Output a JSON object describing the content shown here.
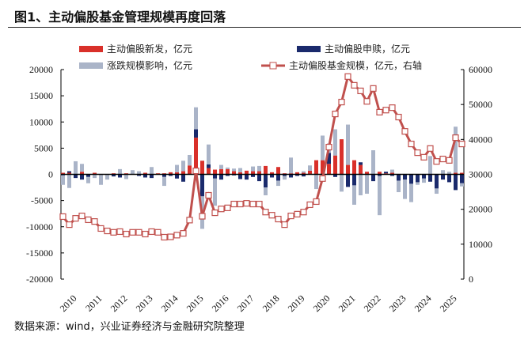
{
  "title": "图1、主动偏股基金管理规模再度回落",
  "source": "数据来源：wind，兴业证券经济与金融研究院整理",
  "chart_data": {
    "type": "bar+line",
    "title": "图1、主动偏股基金管理规模再度回落",
    "x_tick_labels": [
      "2010",
      "2011",
      "2012",
      "2013",
      "2014",
      "2015",
      "2016",
      "2017",
      "2018",
      "2019",
      "2020",
      "2021",
      "2022",
      "2023",
      "2024",
      "2025"
    ],
    "left_axis": {
      "ylim": [
        -20000,
        20000
      ],
      "ticks": [
        20000,
        15000,
        10000,
        5000,
        0,
        -5000,
        -10000,
        -15000,
        -20000
      ]
    },
    "right_axis": {
      "ylim": [
        0,
        60000
      ],
      "ticks": [
        60000,
        50000,
        40000,
        30000,
        20000,
        10000,
        0
      ]
    },
    "colors": {
      "new": "#d9302a",
      "sub": "#1a2a6c",
      "mkt": "#aab4c8",
      "line": "#c0504d"
    },
    "series": [
      {
        "name": "主动偏股新发，亿元",
        "type": "bar",
        "axis": "left",
        "values": [
          300,
          300,
          0,
          500,
          0,
          300,
          0,
          0,
          200,
          0,
          200,
          0,
          0,
          300,
          0,
          200,
          200,
          400,
          400,
          600,
          1700,
          7000,
          2600,
          1200,
          900,
          1000,
          1000,
          600,
          400,
          700,
          600,
          600,
          1600,
          400,
          1400,
          200,
          200,
          400,
          300,
          700,
          2700,
          2700,
          2000,
          3600,
          6700,
          1800,
          2700,
          1800,
          500,
          0,
          500,
          200,
          300,
          0,
          0,
          0,
          0,
          0,
          0,
          0,
          0,
          0,
          300,
          300
        ]
      },
      {
        "name": "主动偏股申赎，亿元",
        "type": "bar",
        "axis": "left",
        "values": [
          -200,
          300,
          -700,
          -1000,
          -500,
          0,
          0,
          0,
          -400,
          -600,
          0,
          0,
          -300,
          -600,
          -700,
          0,
          -500,
          -300,
          -800,
          -1400,
          0,
          1600,
          -4200,
          700,
          -800,
          -1000,
          -300,
          -200,
          -900,
          -1000,
          -500,
          -1300,
          -2500,
          -600,
          -1200,
          -300,
          -600,
          -300,
          -400,
          0,
          0,
          0,
          2100,
          -500,
          0,
          -2400,
          -2100,
          500,
          0,
          -1300,
          -300,
          300,
          -300,
          -1200,
          -1000,
          -1800,
          -1500,
          -800,
          -1400,
          -2700,
          -1000,
          -1500,
          -3000,
          -1700
        ]
      },
      {
        "name": "涨跌规模影响，亿元",
        "type": "bar",
        "axis": "left",
        "values": [
          -1800,
          -2600,
          2500,
          1500,
          -1200,
          -700,
          -2000,
          -1000,
          0,
          1000,
          -900,
          800,
          600,
          0,
          1400,
          0,
          -1700,
          0,
          1400,
          2000,
          2000,
          4200,
          -6200,
          3800,
          -5200,
          800,
          300,
          500,
          800,
          0,
          900,
          1000,
          -1500,
          0,
          -1000,
          -700,
          3000,
          0,
          300,
          1000,
          -2800,
          4700,
          1800,
          5000,
          -3300,
          7700,
          -3700,
          -4000,
          -3700,
          4600,
          -7500,
          0,
          600,
          -2200,
          -3700,
          -3500,
          -500,
          -800,
          3500,
          -1000,
          800,
          500,
          8800,
          -600
        ]
      },
      {
        "name": "主动偏股基金规模，亿元，右轴",
        "type": "line",
        "axis": "right",
        "values": [
          17900,
          15600,
          17400,
          18100,
          17000,
          16500,
          14500,
          13800,
          13400,
          13600,
          12900,
          13400,
          13400,
          12900,
          13600,
          13400,
          12000,
          12100,
          12600,
          13100,
          16900,
          31000,
          18000,
          24000,
          19000,
          20100,
          20400,
          21500,
          21500,
          21700,
          21500,
          21500,
          19200,
          18300,
          17200,
          15600,
          18100,
          18600,
          19200,
          21300,
          22200,
          28800,
          37800,
          47300,
          50700,
          58000,
          55500,
          53900,
          50900,
          54600,
          47800,
          48400,
          49100,
          46400,
          42300,
          38700,
          36200,
          34900,
          37400,
          33700,
          34400,
          34000,
          40500,
          38700
        ]
      }
    ]
  }
}
